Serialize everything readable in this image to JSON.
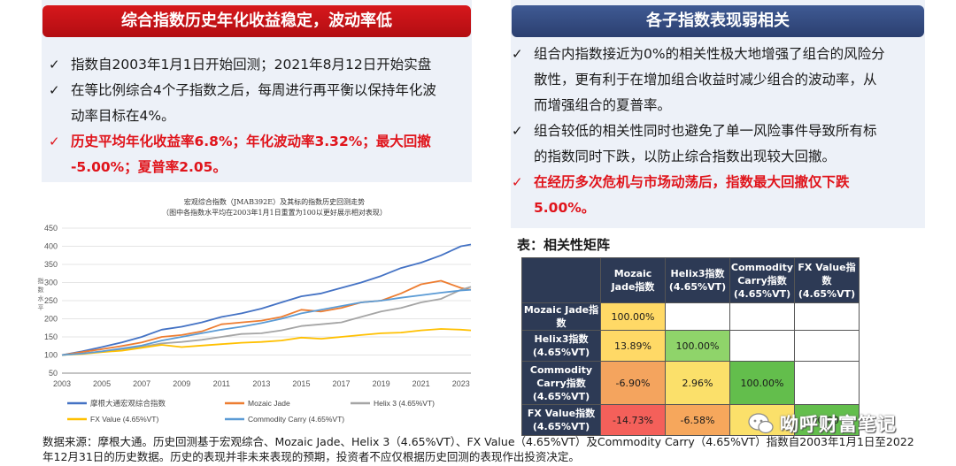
{
  "left": {
    "header": "综合指数历史年化收益稳定，波动率低",
    "bullets": [
      {
        "lines": [
          "指数自2003年1月1日开始回测；2021年8月12日开始实盘"
        ],
        "red": false
      },
      {
        "lines": [
          "在等比例综合4个子指数之后，每周进行再平衡以保持年化波",
          "动率目标在4%。"
        ],
        "red": false
      },
      {
        "lines": [
          "历史平均年化收益率6.8%；年化波动率3.32%；最大回撤",
          "-5.00%；夏普率2.05。"
        ],
        "red": true
      }
    ]
  },
  "right": {
    "header": "各子指数表现弱相关",
    "bullets": [
      {
        "lines": [
          "组合内指数接近为0%的相关性极大地增强了组合的风险分",
          "散性，更有利于在增加组合收益时减少组合的波动率，从",
          "而增强组合的夏普率。"
        ],
        "red": false
      },
      {
        "lines": [
          "组合较低的相关性同时也避免了单一风险事件导致所有标",
          "的指数同时下跌，以防止综合指数出现较大回撤。"
        ],
        "red": false
      },
      {
        "lines": [
          "在经历多次危机与市场动荡后，指数最大回撤仅下跌",
          "5.00%。"
        ],
        "red": true
      }
    ]
  },
  "check_icon": "check-icon",
  "colors": {
    "red": "#e0141b",
    "navy": "#2b3f70",
    "panel": "#edf1f8"
  },
  "chart_data": {
    "type": "line",
    "title": "宏观综合指数（JMAB392E）及其标的指数历史回测走势",
    "subtitle": "（图中各指数水平均在2003年1月1日重置为100以更好展示相对表现）",
    "ylabel": "指数水平",
    "xlabel": "",
    "ylim": [
      50,
      450
    ],
    "yticks": [
      50,
      100,
      150,
      200,
      250,
      300,
      350,
      400,
      450
    ],
    "xticks": [
      "2003",
      "2005",
      "2007",
      "2009",
      "2011",
      "2013",
      "2015",
      "2017",
      "2019",
      "2021",
      "2023"
    ],
    "x": [
      2003,
      2004,
      2005,
      2006,
      2007,
      2008,
      2009,
      2010,
      2011,
      2012,
      2013,
      2014,
      2015,
      2016,
      2017,
      2018,
      2019,
      2020,
      2021,
      2022,
      2023,
      2023.5
    ],
    "series": [
      {
        "name": "摩根大通宏观综合指数",
        "color": "#4472c4",
        "values": [
          100,
          110,
          122,
          135,
          150,
          170,
          178,
          190,
          205,
          215,
          228,
          245,
          262,
          270,
          285,
          300,
          318,
          340,
          355,
          375,
          400,
          405
        ]
      },
      {
        "name": "Mozaic Jade",
        "color": "#ed7d31",
        "values": [
          100,
          108,
          116,
          125,
          135,
          150,
          155,
          165,
          185,
          190,
          195,
          205,
          225,
          220,
          230,
          245,
          250,
          270,
          295,
          305,
          285,
          280
        ]
      },
      {
        "name": "Helix 3 (4.65%VT)",
        "color": "#a5a5a5",
        "values": [
          100,
          104,
          110,
          116,
          123,
          132,
          136,
          142,
          150,
          158,
          160,
          168,
          180,
          185,
          190,
          205,
          220,
          230,
          245,
          255,
          280,
          288
        ]
      },
      {
        "name": "FX Value (4.65%VT)",
        "color": "#ffc000",
        "values": [
          100,
          103,
          108,
          112,
          120,
          128,
          122,
          126,
          130,
          134,
          136,
          140,
          148,
          145,
          150,
          155,
          160,
          162,
          168,
          172,
          170,
          168
        ]
      },
      {
        "name": "Commodity Carry (4.65%VT)",
        "color": "#5b9bd5",
        "values": [
          100,
          104,
          110,
          118,
          126,
          140,
          150,
          160,
          170,
          178,
          188,
          200,
          215,
          225,
          235,
          245,
          250,
          258,
          265,
          272,
          278,
          280
        ]
      }
    ]
  },
  "table": {
    "title": "表：相关性矩阵",
    "col_headers": [
      "Mozaic\nJade指数",
      "Helix3指数\n(4.65%VT)",
      "Commodity\nCarry指数\n(4.65%VT)",
      "FX Value指数\n(4.65%VT)"
    ],
    "rows": [
      {
        "label": "Mozaic Jade指数",
        "cells": [
          "100.00%",
          "",
          "",
          ""
        ],
        "colors": [
          "#ffd966",
          "#ffffff",
          "#ffffff",
          "#ffffff"
        ]
      },
      {
        "label": "Helix3指数\n(4.65%VT)",
        "cells": [
          "13.89%",
          "100.00%",
          "",
          ""
        ],
        "colors": [
          "#ffd966",
          "#8fd46a",
          "#ffffff",
          "#ffffff"
        ]
      },
      {
        "label": "Commodity\nCarry指数\n(4.65%VT)",
        "cells": [
          "-6.90%",
          "2.96%",
          "100.00%",
          ""
        ],
        "colors": [
          "#f4a45e",
          "#fbe06a",
          "#63be4c",
          "#ffffff"
        ]
      },
      {
        "label": "FX Value指数\n(4.65%VT)",
        "cells": [
          "-14.73%",
          "-6.58%",
          "2.",
          "100.00%"
        ],
        "colors": [
          "#f4605a",
          "#f6a75c",
          "#fbe06a",
          "#63be4c"
        ]
      }
    ]
  },
  "source": {
    "line1": "数据来源：摩根大通。历史回测基于宏观综合、Mozaic Jade、Helix 3（4.65%VT）、FX Value（4.65%VT）及Commodity Carry（4.65%VT）指数自2003年1月1日至2022",
    "line2": "年12月31日的历史数据。历史的表现并非未来表现的预期，投资者不应仅根据历史回测的表现作出投资决定。"
  },
  "watermark": {
    "text": "呦呼财富笔记",
    "icon": "chat-bubble-icon"
  }
}
